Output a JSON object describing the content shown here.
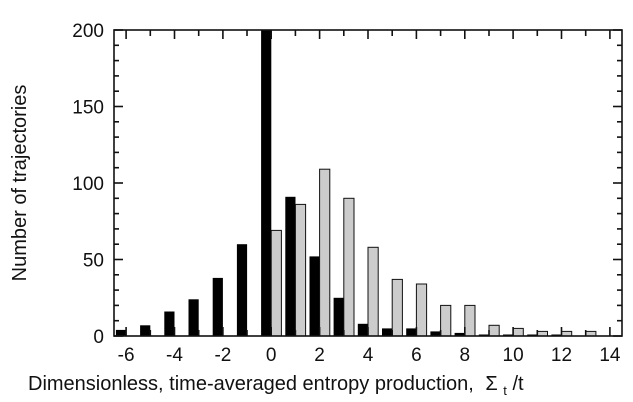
{
  "chart_data": {
    "type": "bar",
    "xlabel": "Dimensionless, time-averaged entropy production,",
    "xlabel_symbol": "Σ",
    "xlabel_subscript": "t",
    "xlabel_suffix": "/t",
    "ylabel": "Number of trajectories",
    "xlim": [
      -6.5,
      14.5
    ],
    "ylim": [
      0,
      200
    ],
    "x_ticks": [
      "-6",
      "-4",
      "-2",
      "0",
      "2",
      "4",
      "6",
      "8",
      "10",
      "12",
      "14"
    ],
    "y_ticks": [
      "0",
      "50",
      "100",
      "150",
      "200"
    ],
    "series": [
      {
        "color": "#000000",
        "x": [
          -6,
          -5,
          -4,
          -3,
          -2,
          -1,
          0,
          1,
          2,
          3,
          4,
          5,
          6,
          7,
          8,
          9,
          10,
          11,
          12,
          13
        ],
        "values": [
          4,
          7,
          16,
          24,
          38,
          60,
          200,
          91,
          52,
          25,
          8,
          5,
          5,
          3,
          2,
          1,
          1,
          1,
          1,
          0
        ]
      },
      {
        "color": "#cccccc",
        "x": [
          -6,
          -5,
          -4,
          -3,
          -2,
          -1,
          0,
          1,
          2,
          3,
          4,
          5,
          6,
          7,
          8,
          9,
          10,
          11,
          12,
          13
        ],
        "values": [
          0,
          0,
          0,
          0,
          0,
          0,
          69,
          86,
          109,
          90,
          58,
          37,
          34,
          20,
          20,
          7,
          5,
          3,
          3,
          3
        ]
      }
    ]
  }
}
